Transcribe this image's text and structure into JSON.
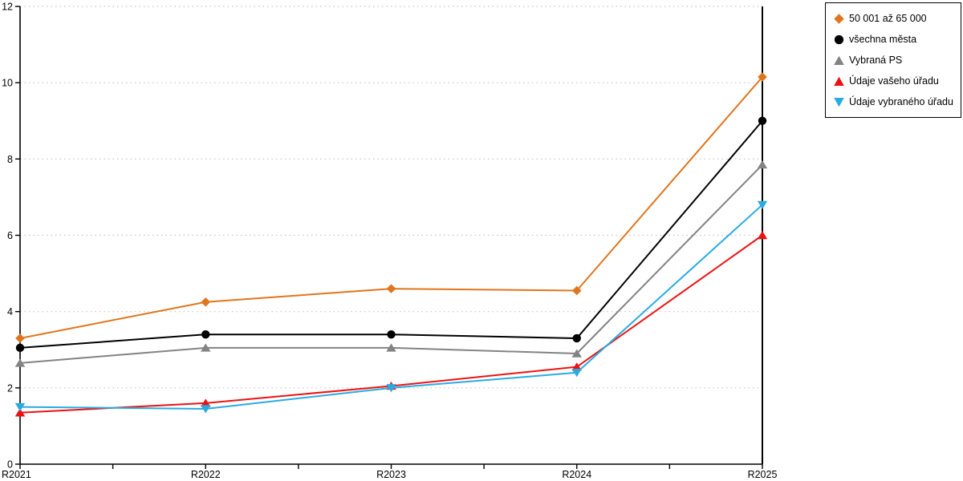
{
  "chart_data": {
    "type": "line",
    "title": "",
    "xlabel": "",
    "ylabel": "",
    "categories": [
      "R2021",
      "R2022",
      "R2023",
      "R2024",
      "R2025"
    ],
    "yticks": [
      0,
      2,
      4,
      6,
      8,
      10,
      12
    ],
    "ylim": [
      0,
      12
    ],
    "grid": "horizontal-dotted",
    "grid_color": "#c6c6c6",
    "axis_color": "#000000",
    "x_minor_ticks_between_categories": true,
    "legend_position": "outside-top-right",
    "series": [
      {
        "name": "50 001 až 65 000",
        "marker": "diamond",
        "color": "#e0751c",
        "values": [
          3.3,
          4.25,
          4.6,
          4.55,
          10.15
        ]
      },
      {
        "name": "všechna města",
        "marker": "circle",
        "color": "#000000",
        "values": [
          3.05,
          3.4,
          3.4,
          3.3,
          9.0
        ]
      },
      {
        "name": "Vybraná PS",
        "marker": "triangle-up",
        "color": "#838383",
        "values": [
          2.65,
          3.05,
          3.05,
          2.9,
          7.85
        ]
      },
      {
        "name": "Údaje vašeho úřadu",
        "marker": "triangle-up",
        "color": "#ee1111",
        "values": [
          1.35,
          1.6,
          2.05,
          2.55,
          6.0
        ]
      },
      {
        "name": "Údaje vybraného úřadu",
        "marker": "triangle-down",
        "color": "#29abe2",
        "values": [
          1.5,
          1.45,
          2.0,
          2.4,
          6.8
        ]
      }
    ]
  }
}
